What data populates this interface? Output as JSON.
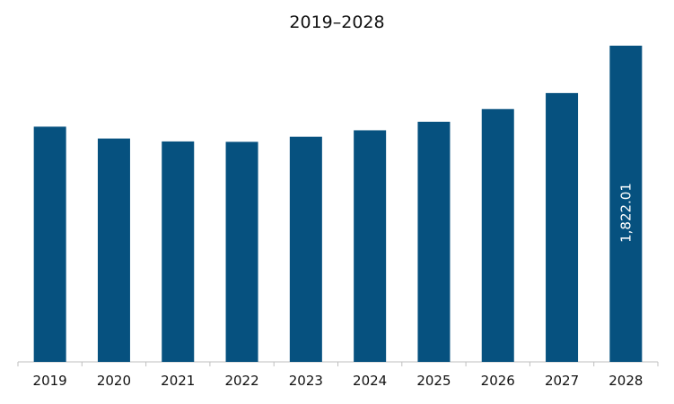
{
  "chart_data": {
    "type": "bar",
    "title": "2019–2028",
    "categories": [
      "2019",
      "2020",
      "2021",
      "2022",
      "2023",
      "2024",
      "2025",
      "2026",
      "2027",
      "2028"
    ],
    "values": [
      1355.4,
      1287.1,
      1270.3,
      1268.0,
      1297.2,
      1334.5,
      1383.7,
      1456.8,
      1549.1,
      1822.01
    ],
    "data_labels": {
      "9": "1,822.01"
    },
    "bar_color": "#06517f",
    "xlabel": "",
    "ylabel": "",
    "ylim": [
      0,
      1822.01
    ],
    "grid": false,
    "legend": "none"
  }
}
